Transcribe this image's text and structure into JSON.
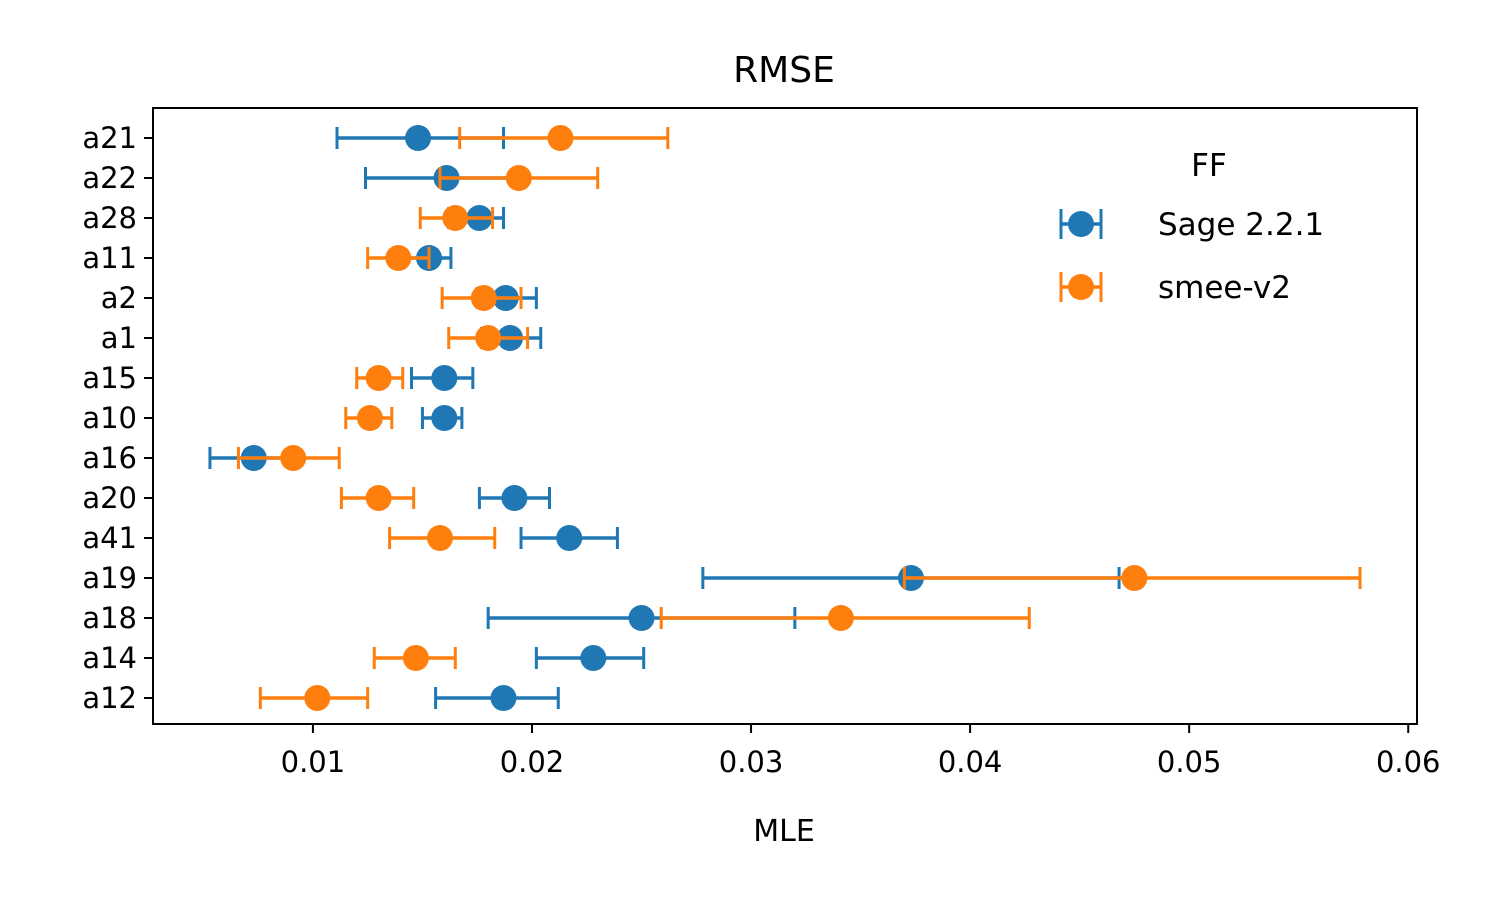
{
  "chart_data": {
    "type": "scatter",
    "title": "RMSE",
    "xlabel": "MLE",
    "ylabel": "",
    "xlim": [
      0.0027,
      0.0604
    ],
    "xticks": [
      0.01,
      0.02,
      0.03,
      0.04,
      0.05,
      0.06
    ],
    "xtick_labels": [
      "0.01",
      "0.02",
      "0.03",
      "0.04",
      "0.05",
      "0.06"
    ],
    "categories": [
      "a21",
      "a22",
      "a28",
      "a11",
      "a2",
      "a1",
      "a15",
      "a10",
      "a16",
      "a20",
      "a41",
      "a19",
      "a18",
      "a14",
      "a12"
    ],
    "grid": false,
    "legend": {
      "title": "FF",
      "placement": "top-right"
    },
    "series": [
      {
        "name": "Sage 2.2.1",
        "color": "#1f77b4",
        "values": [
          0.0148,
          0.0161,
          0.0176,
          0.0153,
          0.0188,
          0.019,
          0.016,
          0.016,
          0.0073,
          0.0192,
          0.0217,
          0.0373,
          0.025,
          0.0228,
          0.0187
        ],
        "lower": [
          0.0111,
          0.0124,
          0.0162,
          0.0141,
          0.0175,
          0.0177,
          0.0145,
          0.015,
          0.0053,
          0.0176,
          0.0195,
          0.0278,
          0.018,
          0.0202,
          0.0156
        ],
        "upper": [
          0.0187,
          0.0195,
          0.0187,
          0.0163,
          0.0202,
          0.0204,
          0.0173,
          0.0168,
          0.0089,
          0.0208,
          0.0239,
          0.0468,
          0.032,
          0.0251,
          0.0212
        ]
      },
      {
        "name": "smee-v2",
        "color": "#ff7f0e",
        "values": [
          0.0213,
          0.0194,
          0.0165,
          0.0139,
          0.0178,
          0.018,
          0.013,
          0.0126,
          0.0091,
          0.013,
          0.0158,
          0.0475,
          0.0341,
          0.0147,
          0.0102
        ],
        "lower": [
          0.0167,
          0.0158,
          0.0149,
          0.0125,
          0.0159,
          0.0162,
          0.012,
          0.0115,
          0.0066,
          0.0113,
          0.0135,
          0.037,
          0.0259,
          0.0128,
          0.0076
        ],
        "upper": [
          0.0262,
          0.023,
          0.0182,
          0.0153,
          0.0195,
          0.0198,
          0.0141,
          0.0136,
          0.0112,
          0.0146,
          0.0183,
          0.0578,
          0.0427,
          0.0165,
          0.0125
        ]
      }
    ]
  }
}
